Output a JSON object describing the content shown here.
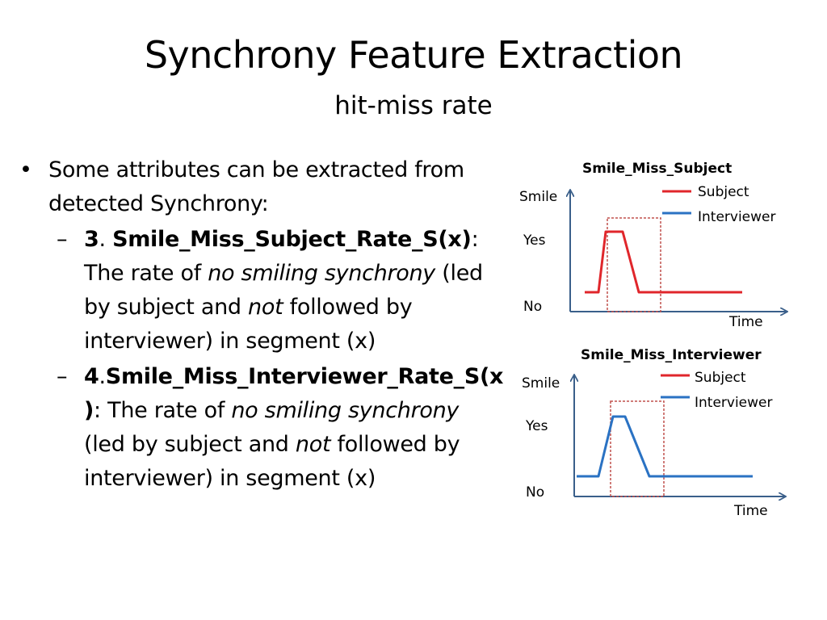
{
  "slide": {
    "title": "Synchrony Feature Extraction",
    "subtitle": "hit-miss rate"
  },
  "bullets": {
    "main": "Some attributes can be extracted from detected Synchrony:",
    "item1": {
      "num": "3",
      "sep": ". ",
      "name": "Smile_Miss_Subject_Rate_S(x)",
      "colon": ":",
      "t1": " The rate of ",
      "em1": "no smiling synchrony",
      "t2": " (led by subject and ",
      "em2": "not",
      "t3": " followed by interviewer) in segment (x)"
    },
    "item2": {
      "num": "4",
      "sep": ".",
      "name": "Smile_Miss_Interviewer_Rate_S(x )",
      "colon": ":",
      "t1": " The rate of ",
      "em1": "no smiling synchrony",
      "t2": " (led by subject and ",
      "em2": "not",
      "t3": " followed by interviewer) in segment (x)"
    }
  },
  "chart_data": [
    {
      "type": "line",
      "title": "Smile_Miss_Subject",
      "ylabel": "Smile",
      "xlabel": "Time",
      "y_levels": [
        "No",
        "Yes"
      ],
      "legend": [
        "Subject",
        "Interviewer"
      ],
      "series": [
        {
          "name": "Subject",
          "color": "#e0262b",
          "highlighted": true
        },
        {
          "name": "Interviewer",
          "color": "#2a72c3",
          "highlighted": false
        }
      ],
      "highlight_box_color": "#c0504d"
    },
    {
      "type": "line",
      "title": "Smile_Miss_Interviewer",
      "ylabel": "Smile",
      "xlabel": "Time",
      "y_levels": [
        "No",
        "Yes"
      ],
      "legend": [
        "Subject",
        "Interviewer"
      ],
      "series": [
        {
          "name": "Subject",
          "color": "#e0262b",
          "highlighted": false
        },
        {
          "name": "Interviewer",
          "color": "#2a72c3",
          "highlighted": true
        }
      ],
      "highlight_box_color": "#c0504d"
    }
  ],
  "colors": {
    "axis": "#3a5f8a",
    "subject": "#e0262b",
    "interviewer": "#2a72c3"
  }
}
